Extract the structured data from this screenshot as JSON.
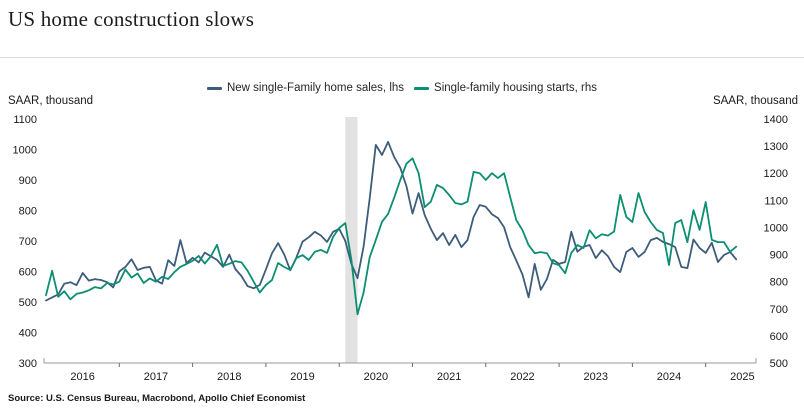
{
  "header": {
    "title": "US home construction slows"
  },
  "legend": [
    {
      "label": "New single-Family home sales, lhs",
      "color": "#3e5c7b"
    },
    {
      "label": "Single-family housing starts, rhs",
      "color": "#0b8e71"
    }
  ],
  "axes": {
    "left_unit": "SAAR, thousand",
    "right_unit": "SAAR, thousand"
  },
  "source": "Source: U.S. Census Bureau, Macrobond, Apollo Chief Economist",
  "chart_data": {
    "type": "line",
    "title": "US home construction slows",
    "x_unit": "month",
    "x_start": "2016-01",
    "x_end": "2025-06",
    "x_tick_years": [
      2016,
      2017,
      2018,
      2019,
      2020,
      2021,
      2022,
      2023,
      2024,
      2025
    ],
    "left_axis": {
      "label": "SAAR, thousand",
      "min": 300,
      "max": 1100,
      "ticks": [
        300,
        400,
        500,
        600,
        700,
        800,
        900,
        1000,
        1100
      ]
    },
    "right_axis": {
      "label": "SAAR, thousand",
      "min": 500,
      "max": 1400,
      "ticks": [
        500,
        600,
        700,
        800,
        900,
        1000,
        1100,
        1200,
        1300,
        1400
      ]
    },
    "recession_band": {
      "from": "2020-02",
      "to": "2020-04",
      "color": "#e2e2e2"
    },
    "series": [
      {
        "name": "New single-Family home sales, lhs",
        "axis": "left",
        "color": "#3e5c7b",
        "values": [
          505,
          515,
          525,
          560,
          565,
          555,
          595,
          570,
          575,
          572,
          565,
          548,
          600,
          615,
          640,
          605,
          612,
          615,
          571,
          560,
          637,
          618,
          703,
          628,
          645,
          630,
          662,
          650,
          638,
          615,
          655,
          608,
          585,
          552,
          545,
          556,
          607,
          660,
          693,
          656,
          604,
          646,
          698,
          712,
          730,
          718,
          697,
          730,
          740,
          700,
          625,
          578,
          682,
          840,
          1015,
          982,
          1025,
          975,
          940,
          880,
          790,
          857,
          785,
          740,
          703,
          726,
          687,
          720,
          680,
          703,
          779,
          818,
          812,
          788,
          775,
          745,
          680,
          636,
          590,
          515,
          625,
          540,
          575,
          638,
          625,
          631,
          730,
          665,
          681,
          687,
          644,
          670,
          650,
          615,
          598,
          664,
          677,
          648,
          664,
          703,
          710,
          697,
          690,
          680,
          615,
          611,
          705,
          677,
          661,
          694,
          631,
          654,
          664,
          640
        ]
      },
      {
        "name": "Single-family housing starts, rhs",
        "axis": "right",
        "color": "#0b8e71",
        "values": [
          750,
          840,
          744,
          765,
          735,
          755,
          760,
          768,
          780,
          775,
          795,
          790,
          800,
          845,
          815,
          830,
          795,
          812,
          800,
          818,
          810,
          835,
          855,
          865,
          877,
          895,
          867,
          894,
          936,
          858,
          866,
          876,
          871,
          840,
          800,
          760,
          788,
          806,
          869,
          854,
          843,
          887,
          898,
          880,
          910,
          917,
          906,
          965,
          998,
          1016,
          880,
          680,
          760,
          890,
          954,
          1021,
          1050,
          1110,
          1175,
          1235,
          1255,
          1200,
          1075,
          1095,
          1157,
          1145,
          1120,
          1090,
          1085,
          1095,
          1205,
          1200,
          1175,
          1200,
          1182,
          1200,
          1112,
          1027,
          990,
          935,
          905,
          909,
          905,
          868,
          861,
          831,
          906,
          935,
          924,
          990,
          960,
          975,
          970,
          985,
          1120,
          1039,
          1020,
          1127,
          1057,
          1020,
          991,
          980,
          861,
          1016,
          1027,
          946,
          1064,
          991,
          1094,
          954,
          946,
          946,
          910,
          929
        ]
      }
    ]
  }
}
